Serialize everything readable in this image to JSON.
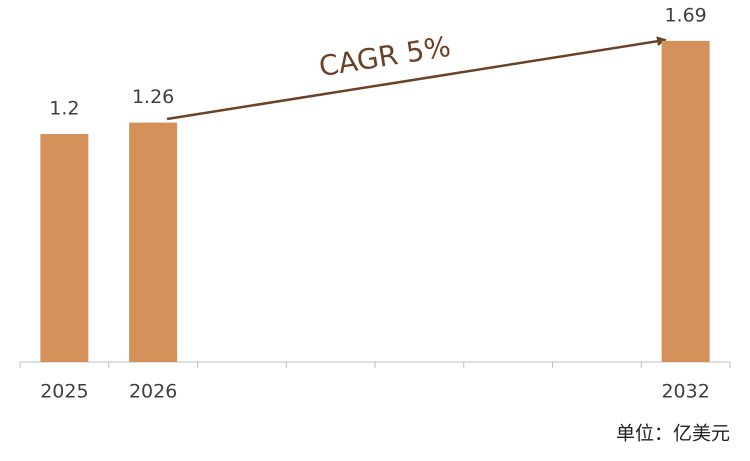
{
  "chart_data": {
    "type": "bar",
    "categories": [
      "2025",
      "2026",
      null,
      null,
      null,
      null,
      null,
      "2032"
    ],
    "values": [
      1.2,
      1.26,
      null,
      null,
      null,
      null,
      null,
      1.69
    ],
    "color": "#d4915a",
    "ylim": [
      0,
      1.9
    ],
    "annotation": "CAGR 5%",
    "unit_note": "单位：亿美元"
  }
}
